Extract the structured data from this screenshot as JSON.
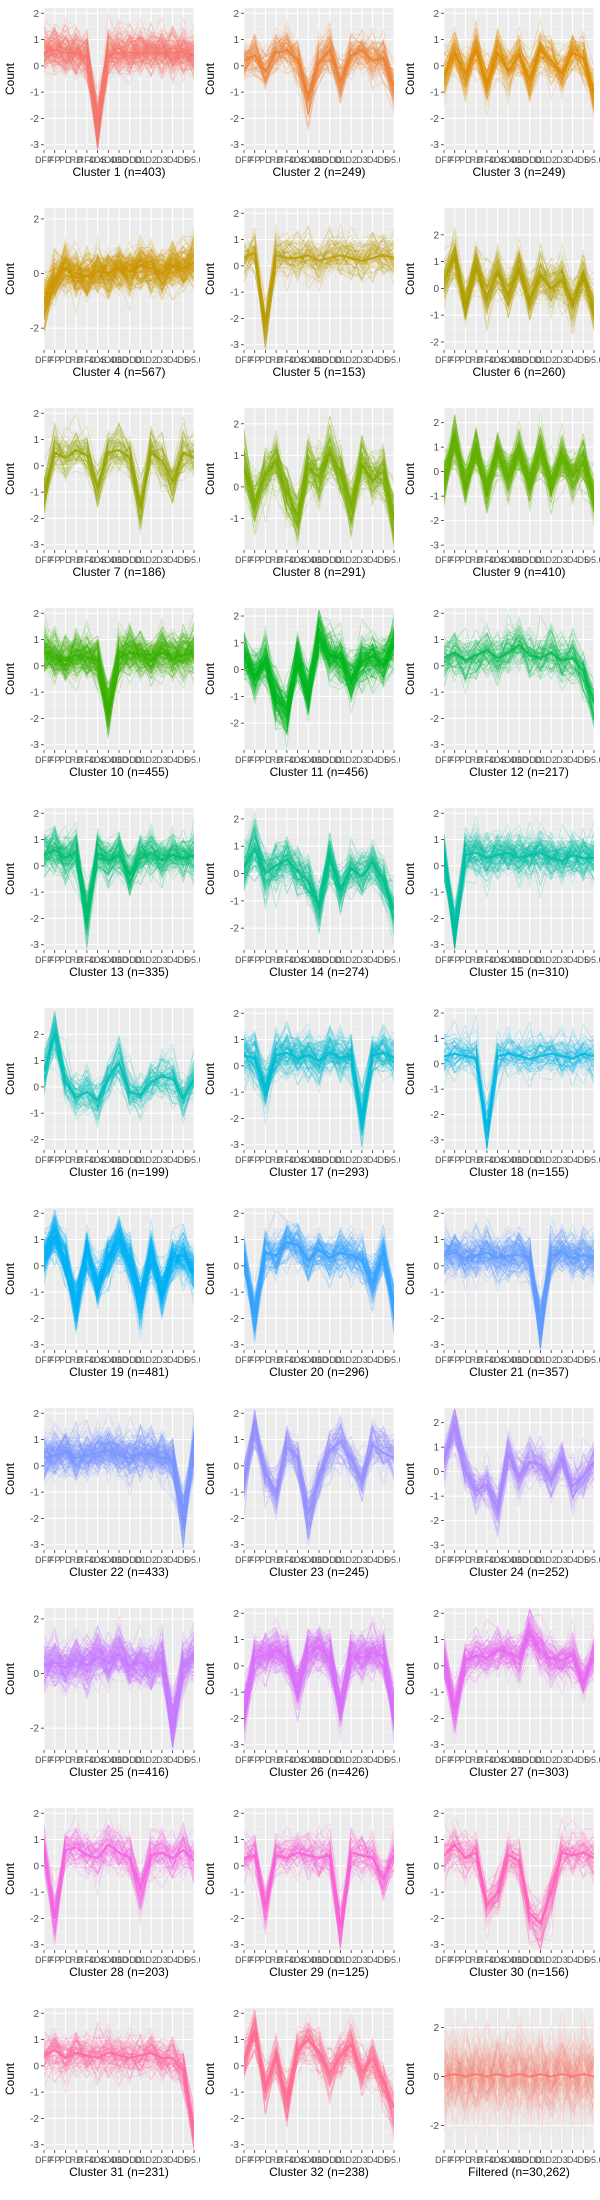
{
  "figure": {
    "ylabel": "Count",
    "x_tick_labels": [
      "DFP",
      "FP",
      "PD",
      "RD",
      "RFD",
      "4OS",
      "4OD",
      "4OD",
      "6ODD",
      "D1",
      "D2",
      "D3",
      "D4",
      "D5",
      "D5.6"
    ]
  },
  "chart_data": [
    {
      "type": "line",
      "title": "Cluster 1 (n=403)",
      "ylabel": "Count",
      "ylim": [
        -3.2,
        2.2
      ],
      "y_ticks": [
        -3,
        -2,
        -1,
        0,
        1,
        2
      ],
      "color": "#F8766D",
      "series_count": 403,
      "mean_profile": [
        0.5,
        0.6,
        0.5,
        0.5,
        0.3,
        -2.2,
        0.4,
        0.5,
        0.5,
        0.5,
        0.5,
        0.5,
        0.5,
        0.5,
        0.4
      ]
    },
    {
      "type": "line",
      "title": "Cluster 2 (n=249)",
      "ylabel": "Count",
      "ylim": [
        -3.2,
        2.2
      ],
      "y_ticks": [
        -3,
        -2,
        -1,
        0,
        1,
        2
      ],
      "color": "#EB8335",
      "series_count": 249,
      "mean_profile": [
        0.2,
        0.4,
        -0.2,
        0.5,
        0.6,
        0.2,
        -1.2,
        0.1,
        0.6,
        -0.6,
        0.4,
        0.6,
        0.2,
        0.3,
        -0.8
      ]
    },
    {
      "type": "line",
      "title": "Cluster 3 (n=249)",
      "ylabel": "Count",
      "ylim": [
        -3.2,
        2.2
      ],
      "y_ticks": [
        -3,
        -2,
        -1,
        0,
        1,
        2
      ],
      "color": "#DE8C00",
      "series_count": 249,
      "mean_profile": [
        -0.4,
        0.5,
        -0.3,
        0.6,
        -0.6,
        0.5,
        -0.2,
        0.4,
        -0.5,
        0.6,
        0.2,
        -0.3,
        0.5,
        0.3,
        -1.0
      ]
    },
    {
      "type": "line",
      "title": "Cluster 4 (n=567)",
      "ylabel": "Count",
      "ylim": [
        -2.8,
        2.4
      ],
      "y_ticks": [
        -2,
        0,
        2
      ],
      "color": "#CD9600",
      "series_count": 567,
      "mean_profile": [
        -1.0,
        -0.2,
        0.2,
        0.0,
        -0.1,
        0.1,
        0.0,
        0.2,
        0.1,
        0.3,
        0.2,
        0.0,
        0.3,
        0.2,
        0.4
      ]
    },
    {
      "type": "line",
      "title": "Cluster 5 (n=153)",
      "ylabel": "Count",
      "ylim": [
        -3.2,
        2.2
      ],
      "y_ticks": [
        -3,
        -2,
        -1,
        0,
        1,
        2
      ],
      "color": "#BB9D00",
      "series_count": 153,
      "mean_profile": [
        0.3,
        0.5,
        -2.2,
        0.4,
        0.3,
        0.3,
        0.4,
        0.2,
        0.3,
        0.4,
        0.3,
        0.2,
        0.3,
        0.4,
        0.3
      ]
    },
    {
      "type": "line",
      "title": "Cluster 6 (n=260)",
      "ylabel": "Count",
      "ylim": [
        -2.3,
        3.0
      ],
      "y_ticks": [
        -2,
        -1,
        0,
        1,
        2
      ],
      "color": "#B2A000",
      "series_count": 260,
      "mean_profile": [
        0.3,
        1.2,
        -0.6,
        0.8,
        -0.3,
        0.6,
        -0.2,
        0.7,
        -0.4,
        0.5,
        0.0,
        0.3,
        -0.5,
        0.4,
        -0.7
      ]
    },
    {
      "type": "line",
      "title": "Cluster 7 (n=186)",
      "ylabel": "Count",
      "ylim": [
        -3.2,
        2.2
      ],
      "y_ticks": [
        -3,
        -2,
        -1,
        0,
        1,
        2
      ],
      "color": "#98A600",
      "series_count": 186,
      "mean_profile": [
        -1.0,
        0.5,
        0.3,
        0.6,
        0.4,
        -0.8,
        0.5,
        0.6,
        0.3,
        -1.6,
        0.5,
        0.2,
        -0.6,
        0.5,
        0.3
      ]
    },
    {
      "type": "line",
      "title": "Cluster 8 (n=291)",
      "ylabel": "Count",
      "ylim": [
        -2.0,
        2.5
      ],
      "y_ticks": [
        -1,
        0,
        1,
        2
      ],
      "color": "#7CAE00",
      "series_count": 291,
      "mean_profile": [
        0.6,
        -0.5,
        0.4,
        0.8,
        -0.2,
        -0.9,
        0.6,
        0.3,
        1.1,
        0.5,
        -0.6,
        0.7,
        0.2,
        0.5,
        -1.0
      ]
    },
    {
      "type": "line",
      "title": "Cluster 9 (n=410)",
      "ylabel": "Count",
      "ylim": [
        -3.2,
        2.6
      ],
      "y_ticks": [
        -3,
        -2,
        -1,
        0,
        1,
        2
      ],
      "color": "#64B200",
      "series_count": 410,
      "mean_profile": [
        -0.3,
        1.2,
        -0.5,
        0.9,
        -0.6,
        0.7,
        -0.2,
        0.8,
        -0.4,
        0.8,
        -0.5,
        0.5,
        -0.2,
        0.4,
        -1.0
      ]
    },
    {
      "type": "line",
      "title": "Cluster 10 (n=455)",
      "ylabel": "Count",
      "ylim": [
        -3.2,
        2.2
      ],
      "y_ticks": [
        -3,
        -2,
        -1,
        0,
        1,
        2
      ],
      "color": "#3BB300",
      "series_count": 455,
      "mean_profile": [
        0.5,
        0.3,
        0.2,
        0.4,
        0.3,
        0.2,
        -1.6,
        0.3,
        0.5,
        0.4,
        0.2,
        0.5,
        0.3,
        0.4,
        0.5
      ]
    },
    {
      "type": "line",
      "title": "Cluster 11 (n=456)",
      "ylabel": "Count",
      "ylim": [
        -3.0,
        2.3
      ],
      "y_ticks": [
        -2,
        -1,
        0,
        1,
        2
      ],
      "color": "#00B81F",
      "series_count": 456,
      "mean_profile": [
        0.5,
        -0.2,
        0.3,
        -1.0,
        -1.5,
        0.4,
        -0.9,
        1.2,
        0.6,
        0.4,
        -0.4,
        0.3,
        0.5,
        0.2,
        0.9
      ]
    },
    {
      "type": "line",
      "title": "Cluster 12 (n=217)",
      "ylabel": "Count",
      "ylim": [
        -3.2,
        2.2
      ],
      "y_ticks": [
        -3,
        -2,
        -1,
        0,
        1,
        2
      ],
      "color": "#00BB4E",
      "series_count": 217,
      "mean_profile": [
        0.3,
        0.5,
        0.2,
        0.4,
        0.6,
        0.3,
        0.5,
        0.8,
        0.4,
        0.3,
        0.5,
        0.2,
        0.3,
        -0.2,
        -1.4
      ]
    },
    {
      "type": "line",
      "title": "Cluster 13 (n=335)",
      "ylabel": "Count",
      "ylim": [
        -3.2,
        2.2
      ],
      "y_ticks": [
        -3,
        -2,
        -1,
        0,
        1,
        2
      ],
      "color": "#00BE70",
      "series_count": 335,
      "mean_profile": [
        0.4,
        0.6,
        0.3,
        0.5,
        -1.8,
        0.5,
        0.2,
        0.4,
        -0.3,
        0.3,
        0.5,
        0.2,
        0.4,
        0.3,
        0.4
      ]
    },
    {
      "type": "line",
      "title": "Cluster 14 (n=274)",
      "ylabel": "Count",
      "ylim": [
        -2.8,
        2.4
      ],
      "y_ticks": [
        -2,
        -1,
        0,
        1,
        2
      ],
      "color": "#00C08B",
      "series_count": 274,
      "mean_profile": [
        0.2,
        0.9,
        0.0,
        0.3,
        0.5,
        0.1,
        -0.3,
        -1.2,
        0.6,
        -0.6,
        0.2,
        -0.1,
        0.4,
        -0.2,
        -1.3
      ]
    },
    {
      "type": "line",
      "title": "Cluster 15 (n=310)",
      "ylabel": "Count",
      "ylim": [
        -3.2,
        2.2
      ],
      "y_ticks": [
        -3,
        -2,
        -1,
        0,
        1,
        2
      ],
      "color": "#00C1A3",
      "series_count": 310,
      "mean_profile": [
        0.3,
        -2.4,
        0.4,
        0.5,
        0.3,
        0.4,
        0.5,
        0.3,
        0.4,
        0.5,
        0.3,
        0.2,
        0.4,
        0.3,
        0.3
      ]
    },
    {
      "type": "line",
      "title": "Cluster 16 (n=199)",
      "ylabel": "Count",
      "ylim": [
        -2.4,
        3.0
      ],
      "y_ticks": [
        -2,
        -1,
        0,
        1,
        2
      ],
      "color": "#00BFB8",
      "series_count": 199,
      "mean_profile": [
        0.6,
        2.0,
        0.2,
        -0.4,
        -0.2,
        -0.5,
        0.3,
        0.9,
        -0.2,
        -0.3,
        0.2,
        0.4,
        0.3,
        -0.4,
        0.3
      ]
    },
    {
      "type": "line",
      "title": "Cluster 17 (n=293)",
      "ylabel": "Count",
      "ylim": [
        -3.2,
        2.2
      ],
      "y_ticks": [
        -3,
        -2,
        -1,
        0,
        1,
        2
      ],
      "color": "#00BCD1",
      "series_count": 293,
      "mean_profile": [
        0.4,
        0.3,
        -0.8,
        0.4,
        0.5,
        0.3,
        0.4,
        0.2,
        0.5,
        0.3,
        0.4,
        -2.0,
        0.4,
        0.5,
        0.3
      ]
    },
    {
      "type": "line",
      "title": "Cluster 18 (n=155)",
      "ylabel": "Count",
      "ylim": [
        -3.4,
        2.2
      ],
      "y_ticks": [
        -3,
        -2,
        -1,
        0,
        1,
        2
      ],
      "color": "#00B8E3",
      "series_count": 155,
      "mean_profile": [
        0.3,
        0.4,
        0.3,
        0.2,
        -2.5,
        0.3,
        0.4,
        0.3,
        0.2,
        0.3,
        0.4,
        0.3,
        0.2,
        0.4,
        0.3
      ]
    },
    {
      "type": "line",
      "title": "Cluster 19 (n=481)",
      "ylabel": "Count",
      "ylim": [
        -3.2,
        2.2
      ],
      "y_ticks": [
        -3,
        -2,
        -1,
        0,
        1,
        2
      ],
      "color": "#00B0F6",
      "series_count": 481,
      "mean_profile": [
        0.3,
        1.1,
        0.2,
        -1.4,
        0.5,
        -0.8,
        0.3,
        1.0,
        0.2,
        -1.3,
        0.4,
        -1.0,
        0.3,
        0.4,
        -0.2
      ]
    },
    {
      "type": "line",
      "title": "Cluster 20 (n=296)",
      "ylabel": "Count",
      "ylim": [
        -3.2,
        2.2
      ],
      "y_ticks": [
        -3,
        -2,
        -1,
        0,
        1,
        2
      ],
      "color": "#35A2FF",
      "series_count": 296,
      "mean_profile": [
        0.3,
        -1.8,
        0.5,
        0.4,
        0.9,
        0.8,
        0.2,
        0.6,
        0.3,
        0.5,
        0.4,
        0.2,
        -0.6,
        0.5,
        -1.4
      ]
    },
    {
      "type": "line",
      "title": "Cluster 21 (n=357)",
      "ylabel": "Count",
      "ylim": [
        -3.2,
        2.2
      ],
      "y_ticks": [
        -3,
        -2,
        -1,
        0,
        1,
        2
      ],
      "color": "#619CFF",
      "series_count": 357,
      "mean_profile": [
        0.4,
        0.5,
        0.3,
        0.4,
        0.5,
        0.3,
        0.4,
        0.4,
        0.3,
        -2.3,
        0.4,
        0.5,
        0.3,
        0.4,
        0.3
      ]
    },
    {
      "type": "line",
      "title": "Cluster 22 (n=433)",
      "ylabel": "Count",
      "ylim": [
        -3.2,
        2.2
      ],
      "y_ticks": [
        -3,
        -2,
        -1,
        0,
        1,
        2
      ],
      "color": "#7A97FF",
      "series_count": 433,
      "mean_profile": [
        0.3,
        0.4,
        0.5,
        0.3,
        0.4,
        0.5,
        0.6,
        0.4,
        0.3,
        0.5,
        0.4,
        0.3,
        0.2,
        -1.9,
        0.6
      ]
    },
    {
      "type": "line",
      "title": "Cluster 23 (n=245)",
      "ylabel": "Count",
      "ylim": [
        -3.2,
        2.2
      ],
      "y_ticks": [
        -3,
        -2,
        -1,
        0,
        1,
        2
      ],
      "color": "#9590FF",
      "series_count": 245,
      "mean_profile": [
        -0.5,
        1.4,
        -0.3,
        -1.0,
        0.7,
        0.3,
        -1.8,
        -0.4,
        0.6,
        0.9,
        0.3,
        -0.6,
        0.8,
        0.5,
        0.3
      ]
    },
    {
      "type": "line",
      "title": "Cluster 24 (n=252)",
      "ylabel": "Count",
      "ylim": [
        -3.2,
        2.6
      ],
      "y_ticks": [
        -3,
        -2,
        -1,
        0,
        1,
        2
      ],
      "color": "#AC88FF",
      "series_count": 252,
      "mean_profile": [
        0.5,
        1.8,
        0.0,
        -0.8,
        -0.5,
        -1.5,
        0.7,
        -0.2,
        0.4,
        0.3,
        -0.3,
        0.5,
        -0.6,
        -0.2,
        0.4
      ]
    },
    {
      "type": "line",
      "title": "Cluster 25 (n=416)",
      "ylabel": "Count",
      "ylim": [
        -2.8,
        2.4
      ],
      "y_ticks": [
        -2,
        0,
        2
      ],
      "color": "#C77CFF",
      "series_count": 416,
      "mean_profile": [
        0.3,
        0.4,
        0.2,
        0.5,
        0.3,
        0.6,
        0.4,
        0.7,
        0.3,
        0.4,
        0.2,
        0.5,
        -1.8,
        0.3,
        0.7
      ]
    },
    {
      "type": "line",
      "title": "Cluster 26 (n=426)",
      "ylabel": "Count",
      "ylim": [
        -3.2,
        2.2
      ],
      "y_ticks": [
        -3,
        -2,
        -1,
        0,
        1,
        2
      ],
      "color": "#DB72FB",
      "series_count": 426,
      "mean_profile": [
        -1.6,
        0.3,
        0.4,
        0.6,
        0.3,
        -0.8,
        0.5,
        0.7,
        0.3,
        -1.4,
        0.4,
        0.3,
        0.5,
        0.4,
        -1.6
      ]
    },
    {
      "type": "line",
      "title": "Cluster 27 (n=303)",
      "ylabel": "Count",
      "ylim": [
        -3.2,
        2.2
      ],
      "y_ticks": [
        -3,
        -2,
        -1,
        0,
        1,
        2
      ],
      "color": "#E76BF3",
      "series_count": 303,
      "mean_profile": [
        0.3,
        -1.6,
        0.2,
        0.4,
        0.3,
        0.6,
        0.5,
        0.3,
        1.2,
        0.6,
        0.3,
        0.2,
        0.4,
        -0.6,
        0.3
      ]
    },
    {
      "type": "line",
      "title": "Cluster 28 (n=203)",
      "ylabel": "Count",
      "ylim": [
        -3.2,
        2.2
      ],
      "y_ticks": [
        -3,
        -2,
        -1,
        0,
        1,
        2
      ],
      "color": "#F564E3",
      "series_count": 203,
      "mean_profile": [
        0.5,
        -2.0,
        0.6,
        0.7,
        0.4,
        0.3,
        0.8,
        0.5,
        0.3,
        -0.9,
        0.4,
        0.5,
        0.3,
        0.6,
        0.2
      ]
    },
    {
      "type": "line",
      "title": "Cluster 29 (n=125)",
      "ylabel": "Count",
      "ylim": [
        -3.2,
        2.2
      ],
      "y_ticks": [
        -3,
        -2,
        -1,
        0,
        1,
        2
      ],
      "color": "#FC61D5",
      "series_count": 125,
      "mean_profile": [
        0.3,
        0.4,
        -1.5,
        0.4,
        0.3,
        0.5,
        0.4,
        0.3,
        0.4,
        -2.3,
        0.5,
        0.4,
        0.3,
        -0.5,
        0.4
      ]
    },
    {
      "type": "line",
      "title": "Cluster 30 (n=156)",
      "ylabel": "Count",
      "ylim": [
        -3.2,
        2.2
      ],
      "y_ticks": [
        -3,
        -2,
        -1,
        0,
        1,
        2
      ],
      "color": "#FF62BC",
      "series_count": 156,
      "mean_profile": [
        0.4,
        0.8,
        0.3,
        0.5,
        -1.5,
        -1.0,
        0.4,
        0.2,
        -1.8,
        -2.2,
        -1.0,
        0.5,
        0.4,
        0.5,
        0.3
      ]
    },
    {
      "type": "line",
      "title": "Cluster 31 (n=231)",
      "ylabel": "Count",
      "ylim": [
        -3.2,
        2.2
      ],
      "y_ticks": [
        -3,
        -2,
        -1,
        0,
        1,
        2
      ],
      "color": "#FF67A4",
      "series_count": 231,
      "mean_profile": [
        0.4,
        0.6,
        0.3,
        0.5,
        0.4,
        0.3,
        0.5,
        0.4,
        0.3,
        0.4,
        0.5,
        0.3,
        0.3,
        -0.2,
        -2.4
      ]
    },
    {
      "type": "line",
      "title": "Cluster 32 (n=238)",
      "ylabel": "Count",
      "ylim": [
        -3.2,
        2.2
      ],
      "y_ticks": [
        -3,
        -2,
        -1,
        0,
        1,
        2
      ],
      "color": "#FF6C91",
      "series_count": 238,
      "mean_profile": [
        0.2,
        1.3,
        -0.8,
        0.3,
        -1.3,
        0.6,
        1.0,
        0.5,
        -0.3,
        0.4,
        0.8,
        -0.2,
        0.3,
        -0.6,
        -1.6
      ]
    },
    {
      "type": "line",
      "title": "Filtered (n=30,262)",
      "ylabel": "Count",
      "ylim": [
        -3.0,
        2.8
      ],
      "y_ticks": [
        -2,
        0,
        2
      ],
      "color": "#F8766D",
      "series_count": 30262,
      "mean_profile": [
        0.0,
        0.1,
        0.0,
        0.1,
        0.0,
        0.1,
        0.0,
        0.1,
        0.0,
        0.1,
        0.0,
        0.1,
        0.0,
        0.1,
        0.0
      ]
    }
  ]
}
